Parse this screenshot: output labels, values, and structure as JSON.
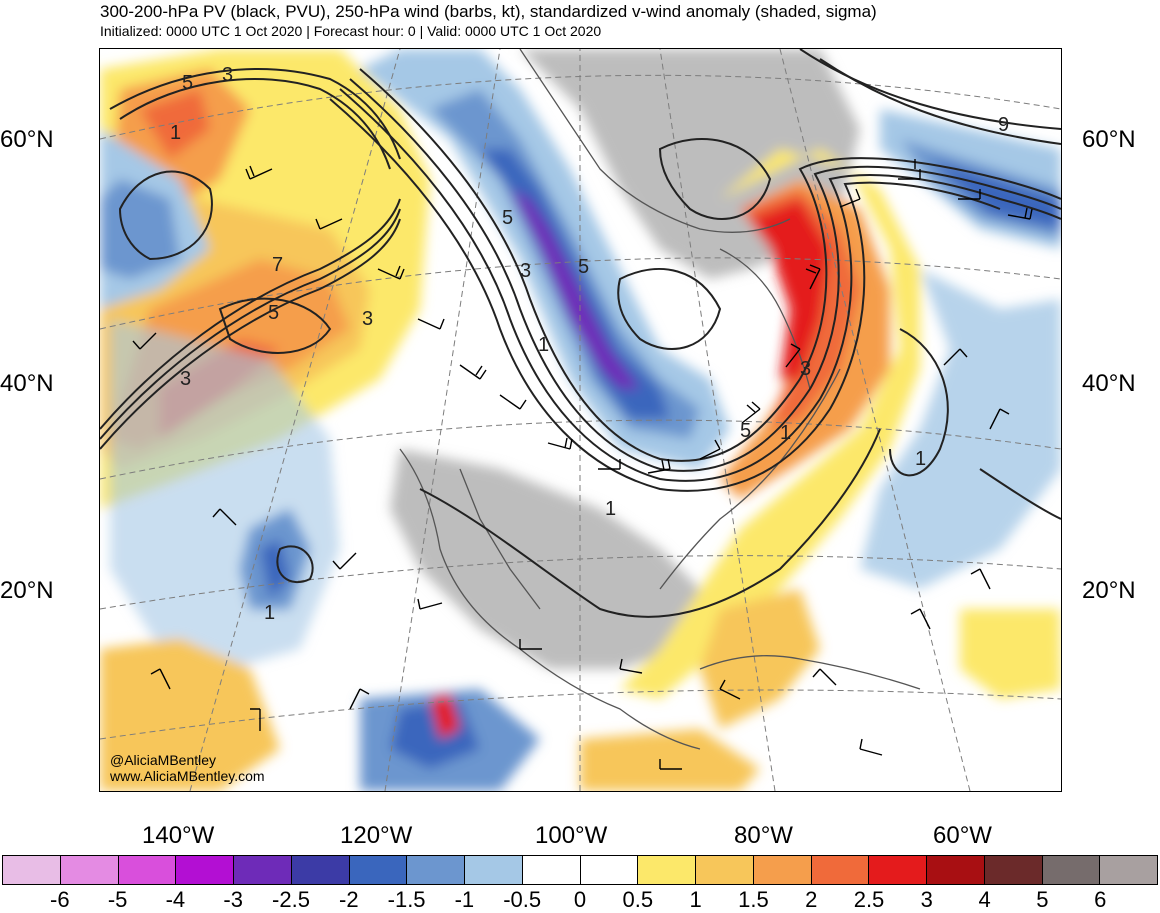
{
  "title": "300-200-hPa PV (black, PVU), 250-hPa wind (barbs, kt), standardized v-wind anomaly (shaded, sigma)",
  "subtitle": "Initialized: 0000 UTC 1 Oct 2020 | Forecast hour: 0 | Valid: 0000 UTC 1 Oct 2020",
  "lat_labels": [
    "60°N",
    "40°N",
    "20°N"
  ],
  "lon_labels": [
    "140°W",
    "120°W",
    "100°W",
    "80°W",
    "60°W"
  ],
  "credit": {
    "handle": "@AliciaMBentley",
    "website": "www.AliciaMBentley.com"
  },
  "contour_labels": [
    "5",
    "3",
    "1",
    "7",
    "5",
    "3",
    "5",
    "3",
    "1",
    "5",
    "3",
    "1",
    "5",
    "3",
    "9",
    "1",
    "1",
    "1"
  ],
  "colorbar": {
    "colors": [
      "#e8bde6",
      "#e48be3",
      "#d94fdc",
      "#b30fd3",
      "#6e2bb8",
      "#3c3ba6",
      "#3a66bd",
      "#6c96cf",
      "#a5c8e6",
      "#ffffff",
      "#ffffff",
      "#fce86a",
      "#f7c65a",
      "#f59e4c",
      "#f06a3a",
      "#e41b1c",
      "#a80f12",
      "#6b2a2a",
      "#766c6c",
      "#a8a0a0"
    ],
    "labels": [
      "-6",
      "-5",
      "-4",
      "-3",
      "-2.5",
      "-2",
      "-1.5",
      "-1",
      "-0.5",
      "0",
      "0.5",
      "1",
      "1.5",
      "2",
      "2.5",
      "3",
      "4",
      "5",
      "6"
    ]
  }
}
